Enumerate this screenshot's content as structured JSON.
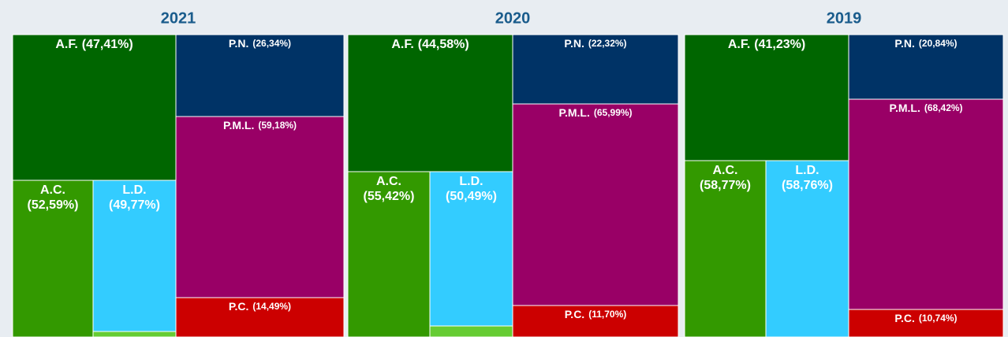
{
  "panels": [
    {
      "title": "2021",
      "tiles": [
        {
          "name": "A.F.",
          "pct": "(47,41%)"
        },
        {
          "name": "A.C.",
          "pct": "(52,59%)"
        },
        {
          "name": "L.D.",
          "pct": "(49,77%)"
        },
        {
          "name": "P.N.",
          "pct": "(26,34%)"
        },
        {
          "name": "P.M.L.",
          "pct": "(59,18%)"
        },
        {
          "name": "P.C.",
          "pct": "(14,49%)"
        }
      ]
    },
    {
      "title": "2020",
      "tiles": [
        {
          "name": "A.F.",
          "pct": "(44,58%)"
        },
        {
          "name": "A.C.",
          "pct": "(55,42%)"
        },
        {
          "name": "L.D.",
          "pct": "(50,49%)"
        },
        {
          "name": "P.N.",
          "pct": "(22,32%)"
        },
        {
          "name": "P.M.L.",
          "pct": "(65,99%)"
        },
        {
          "name": "P.C.",
          "pct": "(11,70%)"
        }
      ]
    },
    {
      "title": "2019",
      "tiles": [
        {
          "name": "A.F.",
          "pct": "(41,23%)"
        },
        {
          "name": "A.C.",
          "pct": "(58,77%)"
        },
        {
          "name": "L.D.",
          "pct": "(58,76%)"
        },
        {
          "name": "P.N.",
          "pct": "(20,84%)"
        },
        {
          "name": "P.M.L.",
          "pct": "(68,42%)"
        },
        {
          "name": "P.C.",
          "pct": "(10,74%)"
        }
      ]
    }
  ]
}
